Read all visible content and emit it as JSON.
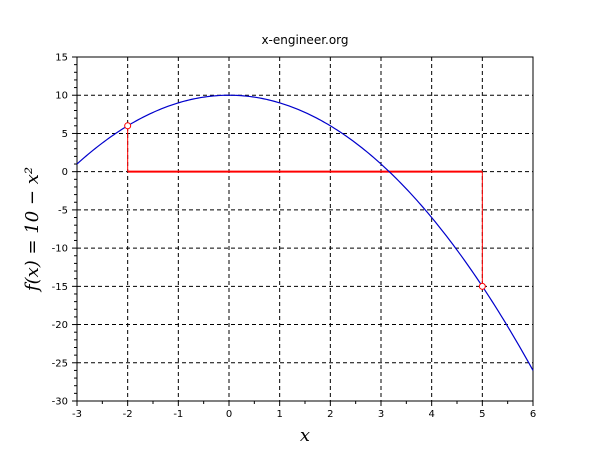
{
  "chart_data": {
    "type": "line",
    "title": "x-engineer.org",
    "xlabel": "x",
    "ylabel": "f(x) = 10 − x²",
    "xlim": [
      -3,
      6
    ],
    "ylim": [
      -30,
      15
    ],
    "x_ticks": [
      -3,
      -2,
      -1,
      0,
      1,
      2,
      3,
      4,
      5,
      6
    ],
    "y_ticks": [
      -30,
      -25,
      -20,
      -15,
      -10,
      -5,
      0,
      5,
      10,
      15
    ],
    "grid": true,
    "grid_style": "dashed",
    "series": [
      {
        "function": "10 - x^2",
        "color": "#0000cc",
        "x": [
          -3,
          -2.5,
          -2,
          -1.5,
          -1,
          -0.5,
          0,
          0.5,
          1,
          1.5,
          2,
          2.5,
          3,
          3.5,
          4,
          4.5,
          5,
          5.5,
          6
        ],
        "y": [
          1,
          3.75,
          6,
          7.75,
          9,
          9.75,
          10,
          9.75,
          9,
          7.75,
          6,
          3.75,
          1,
          -2.25,
          -6,
          -10.25,
          -15,
          -20.25,
          -26
        ]
      }
    ],
    "annotations": {
      "color": "#ff0000",
      "points": [
        {
          "x": -2,
          "y": 6
        },
        {
          "x": 5,
          "y": -15
        }
      ],
      "interval": {
        "from": -2,
        "to": 5,
        "y": 0
      }
    }
  }
}
